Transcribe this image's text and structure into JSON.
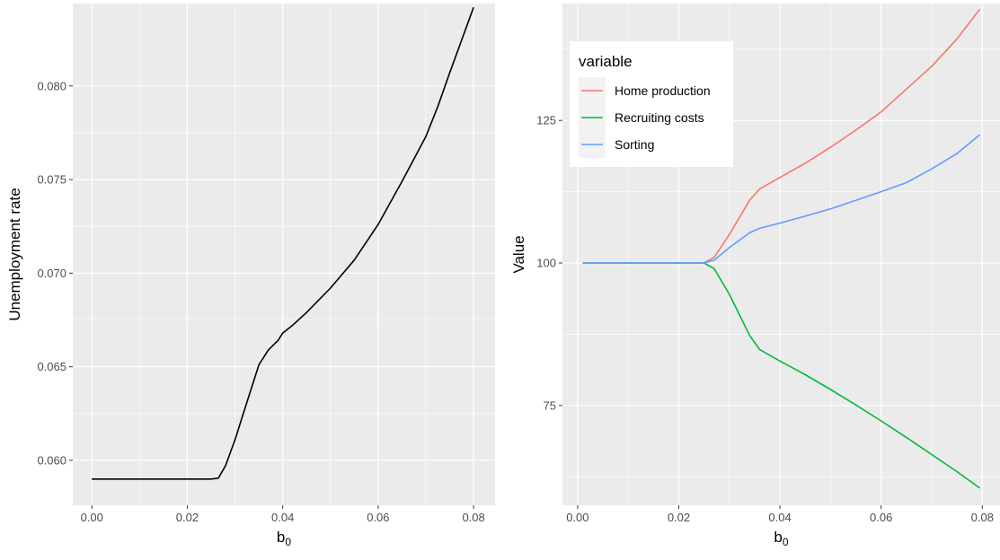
{
  "chart_data": [
    {
      "type": "line",
      "xlabel": "b",
      "xlabel_subscript": "0",
      "ylabel": "Unemployment rate",
      "xlim": [
        -0.004,
        0.0845
      ],
      "ylim": [
        0.0576,
        0.0844
      ],
      "x_ticks": [
        0.0,
        0.02,
        0.04,
        0.06,
        0.08
      ],
      "x_tick_labels": [
        "0.00",
        "0.02",
        "0.04",
        "0.06",
        "0.08"
      ],
      "y_ticks": [
        0.06,
        0.065,
        0.07,
        0.075,
        0.08
      ],
      "y_tick_labels": [
        "0.060",
        "0.065",
        "0.070",
        "0.075",
        "0.080"
      ],
      "grid": true,
      "series": [
        {
          "color": "#000000",
          "x": [
            0.0,
            0.01,
            0.02,
            0.025,
            0.0265,
            0.028,
            0.03,
            0.0325,
            0.035,
            0.037,
            0.039,
            0.04,
            0.042,
            0.045,
            0.05,
            0.055,
            0.06,
            0.065,
            0.07,
            0.0725,
            0.075,
            0.08
          ],
          "values": [
            0.059,
            0.059,
            0.059,
            0.059,
            0.05905,
            0.0597,
            0.0611,
            0.0631,
            0.0651,
            0.0659,
            0.0664,
            0.0668,
            0.0672,
            0.0679,
            0.0692,
            0.0707,
            0.0726,
            0.0749,
            0.0773,
            0.0789,
            0.0807,
            0.0842
          ]
        }
      ]
    },
    {
      "type": "line",
      "xlabel": "b",
      "xlabel_subscript": "0",
      "ylabel": "Value",
      "xlim": [
        -0.003,
        0.0835
      ],
      "ylim": [
        57.5,
        145.5
      ],
      "x_ticks": [
        0.0,
        0.02,
        0.04,
        0.06,
        0.08
      ],
      "x_tick_labels": [
        "0.00",
        "0.02",
        "0.04",
        "0.06",
        "0.08"
      ],
      "y_ticks": [
        75,
        100,
        125
      ],
      "y_tick_labels": [
        "75",
        "100",
        "125"
      ],
      "grid": true,
      "legend": {
        "title": "variable",
        "position": "top-left"
      },
      "series": [
        {
          "name": "Home production",
          "color": "#F8766D",
          "x": [
            0.001,
            0.01,
            0.02,
            0.025,
            0.027,
            0.03,
            0.034,
            0.036,
            0.04,
            0.045,
            0.05,
            0.055,
            0.06,
            0.065,
            0.07,
            0.075,
            0.0795
          ],
          "values": [
            100,
            100,
            100,
            100,
            101,
            105,
            111,
            113,
            115,
            117.5,
            120.3,
            123.3,
            126.5,
            130.5,
            134.5,
            139.3,
            144.5
          ]
        },
        {
          "name": "Recruiting costs",
          "color": "#00BA38",
          "x": [
            0.001,
            0.01,
            0.02,
            0.025,
            0.027,
            0.03,
            0.034,
            0.036,
            0.04,
            0.045,
            0.05,
            0.055,
            0.06,
            0.065,
            0.07,
            0.075,
            0.0795
          ],
          "values": [
            100,
            100,
            100,
            100,
            99,
            94.5,
            87.3,
            84.8,
            82.8,
            80.4,
            77.8,
            75.1,
            72.3,
            69.4,
            66.4,
            63.4,
            60.5
          ]
        },
        {
          "name": "Sorting",
          "color": "#619CFF",
          "x": [
            0.001,
            0.01,
            0.02,
            0.025,
            0.027,
            0.03,
            0.034,
            0.036,
            0.04,
            0.045,
            0.05,
            0.055,
            0.06,
            0.065,
            0.07,
            0.075,
            0.0795
          ],
          "values": [
            100,
            100,
            100,
            100,
            100.5,
            102.7,
            105.3,
            106.1,
            107,
            108.2,
            109.5,
            111,
            112.5,
            114.1,
            116.5,
            119.2,
            122.5
          ]
        }
      ]
    }
  ]
}
